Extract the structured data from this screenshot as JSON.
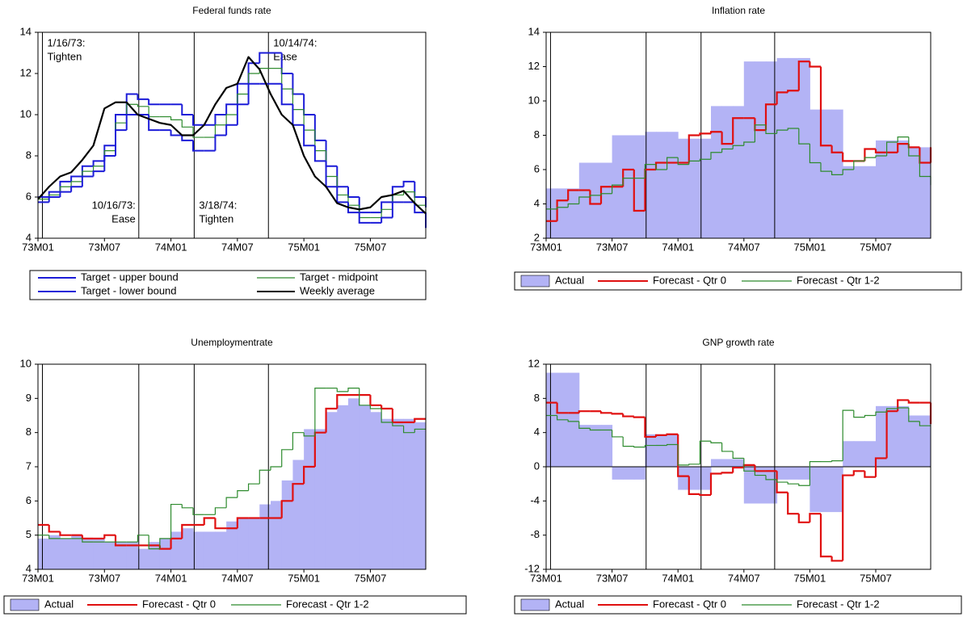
{
  "chart_data": [
    {
      "type": "line",
      "title": "Federal funds rate",
      "categories": [
        "73M01",
        null,
        null,
        null,
        null,
        null,
        "73M07",
        null,
        null,
        null,
        null,
        null,
        "74M01",
        null,
        null,
        null,
        null,
        null,
        "74M07",
        null,
        null,
        null,
        null,
        null,
        "75M01",
        null,
        null,
        null,
        null,
        null,
        "75M07",
        null,
        null,
        null,
        null,
        null
      ],
      "ylim": [
        4,
        14
      ],
      "yticks": [
        4,
        6,
        8,
        10,
        12,
        14
      ],
      "legend": "two-column",
      "events": [
        {
          "at": 0.4,
          "label": [
            "1/16/73:",
            "Tighten"
          ]
        },
        {
          "at": 9.1,
          "label": [
            "10/16/73:",
            "Ease"
          ]
        },
        {
          "at": 14.1,
          "label": [
            "3/18/74:",
            "Tighten"
          ]
        },
        {
          "at": 20.8,
          "label": [
            "10/14/74:",
            "Ease"
          ]
        }
      ],
      "series": [
        {
          "name": "Target - upper bound",
          "color": "#1c1cd8",
          "style": "step",
          "values": [
            6,
            6.25,
            6.75,
            7,
            7.5,
            7.75,
            8.5,
            10,
            11,
            10.75,
            10.5,
            10.5,
            10.5,
            10,
            9.5,
            9.5,
            10,
            10.5,
            11.5,
            12.5,
            13,
            13,
            12,
            11,
            10,
            8.75,
            7.5,
            6.5,
            6,
            5.25,
            5.25,
            5.75,
            6.5,
            6.75,
            6,
            5.5
          ]
        },
        {
          "name": "Target - midpoint",
          "color": "#2e8b2e",
          "style": "step",
          "values": [
            5.9,
            6.1,
            6.5,
            6.75,
            7.25,
            7.5,
            8.25,
            9.6,
            10.5,
            10.4,
            9.9,
            9.9,
            9.75,
            9.4,
            8.9,
            8.9,
            9.5,
            10,
            11,
            12,
            12.25,
            12.25,
            11.25,
            10.25,
            9.25,
            8.25,
            7,
            6.1,
            5.6,
            5,
            5,
            5.4,
            6.1,
            6.25,
            5.6,
            5
          ]
        },
        {
          "name": "Target - lower bound",
          "color": "#1c1cd8",
          "style": "step",
          "values": [
            5.75,
            6,
            6.25,
            6.5,
            7,
            7.25,
            8,
            9.25,
            10,
            10,
            9.25,
            9.25,
            9,
            8.75,
            8.25,
            8.25,
            9,
            9.5,
            10.5,
            11.5,
            11.5,
            11.5,
            10.5,
            9.5,
            8.5,
            7.75,
            6.5,
            5.75,
            5.25,
            4.75,
            4.75,
            5,
            5.75,
            5.75,
            5.25,
            4.5
          ]
        },
        {
          "name": "Weekly average",
          "color": "#000000",
          "style": "line",
          "values": [
            5.9,
            6.5,
            7,
            7.2,
            7.8,
            8.5,
            10.3,
            10.6,
            10.6,
            10,
            9.8,
            9.6,
            9.5,
            9,
            9,
            9.5,
            10.5,
            11.3,
            11.5,
            12.8,
            12.2,
            11,
            10,
            9.5,
            8,
            7,
            6.5,
            5.7,
            5.5,
            5.4,
            5.5,
            6,
            6.1,
            6.3,
            5.7,
            5.2
          ]
        }
      ]
    },
    {
      "type": "line",
      "title": "Inflation rate",
      "categories": [
        "73M01",
        null,
        null,
        null,
        null,
        null,
        "73M07",
        null,
        null,
        null,
        null,
        null,
        "74M01",
        null,
        null,
        null,
        null,
        null,
        "74M07",
        null,
        null,
        null,
        null,
        null,
        "75M01",
        null,
        null,
        null,
        null,
        null,
        "75M07",
        null,
        null,
        null,
        null,
        null
      ],
      "ylim": [
        2,
        14
      ],
      "yticks": [
        2,
        4,
        6,
        8,
        10,
        12,
        14
      ],
      "legend": "row",
      "events": [
        {
          "at": 0.4
        },
        {
          "at": 9.1
        },
        {
          "at": 14.1
        },
        {
          "at": 20.8
        }
      ],
      "series": [
        {
          "name": "Actual",
          "color": "#b3b3f5",
          "style": "area",
          "values": [
            4.9,
            4.9,
            4.9,
            6.4,
            6.4,
            6.4,
            8,
            8,
            8,
            8.2,
            8.2,
            8.2,
            7.8,
            7.8,
            7.8,
            9.7,
            9.7,
            9.7,
            12.3,
            12.3,
            12.3,
            12.5,
            12.5,
            12.5,
            9.5,
            9.5,
            9.5,
            6.2,
            6.2,
            6.2,
            7.7,
            7.7,
            7.7,
            7.3,
            7.3,
            7.3
          ]
        },
        {
          "name": "Forecast - Qtr 0",
          "color": "#e01010",
          "style": "step",
          "values": [
            3,
            4.2,
            4.8,
            4.8,
            4,
            5,
            5,
            6,
            3.6,
            6,
            6.4,
            6.4,
            6.4,
            8,
            8.1,
            8.2,
            7.5,
            9,
            9,
            8.3,
            9.8,
            10.5,
            10.6,
            12.3,
            12,
            7.4,
            7,
            6.5,
            6.5,
            7.2,
            7,
            7,
            7.5,
            7.3,
            6.4,
            7.3
          ]
        },
        {
          "name": "Forecast - Qtr 1-2",
          "color": "#2e8b2e",
          "style": "step",
          "values": [
            3.7,
            3.8,
            4,
            4.4,
            4.5,
            4.6,
            5.1,
            5.5,
            5.5,
            6.3,
            6,
            6.7,
            6.3,
            6.5,
            6.6,
            7,
            7.2,
            7.4,
            7.6,
            8.6,
            8.1,
            8.3,
            8.4,
            7.5,
            6.4,
            5.9,
            5.7,
            6,
            6.5,
            6.7,
            6.8,
            7.6,
            7.9,
            6.8,
            5.6,
            5.1
          ]
        }
      ]
    },
    {
      "type": "line",
      "title": "Unemploymentrate",
      "categories": [
        "73M01",
        null,
        null,
        null,
        null,
        null,
        "73M07",
        null,
        null,
        null,
        null,
        null,
        "74M01",
        null,
        null,
        null,
        null,
        null,
        "74M07",
        null,
        null,
        null,
        null,
        null,
        "75M01",
        null,
        null,
        null,
        null,
        null,
        "75M07",
        null,
        null,
        null,
        null,
        null
      ],
      "ylim": [
        4,
        10
      ],
      "yticks": [
        4,
        5,
        6,
        7,
        8,
        9,
        10
      ],
      "legend": "row",
      "events": [
        {
          "at": 0.4
        },
        {
          "at": 9.1
        },
        {
          "at": 14.1
        },
        {
          "at": 20.8
        }
      ],
      "series": [
        {
          "name": "Actual",
          "color": "#b3b3f5",
          "style": "area",
          "values": [
            4.9,
            5.0,
            4.9,
            5.0,
            4.9,
            4.9,
            4.8,
            4.8,
            4.8,
            4.6,
            4.8,
            4.9,
            5.1,
            5.2,
            5.1,
            5.1,
            5.1,
            5.4,
            5.5,
            5.5,
            5.9,
            6.0,
            6.6,
            7.2,
            8.1,
            8.1,
            8.6,
            8.8,
            9.0,
            8.8,
            8.6,
            8.4,
            8.4,
            8.4,
            8.3,
            8.2
          ]
        },
        {
          "name": "Forecast - Qtr 0",
          "color": "#e01010",
          "style": "step",
          "values": [
            5.3,
            5.1,
            5.0,
            5.0,
            4.9,
            4.9,
            5.0,
            4.7,
            4.7,
            4.7,
            4.7,
            4.6,
            4.9,
            5.3,
            5.3,
            5.5,
            5.2,
            5.2,
            5.5,
            5.5,
            5.5,
            5.5,
            6.0,
            6.5,
            7.0,
            8.0,
            8.7,
            9.1,
            9.1,
            9.1,
            8.8,
            8.7,
            8.3,
            8.3,
            8.4,
            8.4
          ]
        },
        {
          "name": "Forecast - Qtr 1-2",
          "color": "#2e8b2e",
          "style": "step",
          "values": [
            5.0,
            4.9,
            4.9,
            4.9,
            4.8,
            4.8,
            4.8,
            4.8,
            4.8,
            5.0,
            4.6,
            4.9,
            5.9,
            5.8,
            5.6,
            5.6,
            5.8,
            6.1,
            6.3,
            6.5,
            6.9,
            7.0,
            7.5,
            8.0,
            7.9,
            9.3,
            9.3,
            9.2,
            9.3,
            8.8,
            8.7,
            8.3,
            8.2,
            8.0,
            8.1,
            8.1
          ]
        }
      ]
    },
    {
      "type": "line",
      "title": "GNP growth rate",
      "categories": [
        "73M01",
        null,
        null,
        null,
        null,
        null,
        "73M07",
        null,
        null,
        null,
        null,
        null,
        "74M01",
        null,
        null,
        null,
        null,
        null,
        "74M07",
        null,
        null,
        null,
        null,
        null,
        "75M01",
        null,
        null,
        null,
        null,
        null,
        "75M07",
        null,
        null,
        null,
        null,
        null
      ],
      "ylim": [
        -12,
        12
      ],
      "yticks": [
        -12,
        -8,
        -4,
        0,
        4,
        8,
        12
      ],
      "legend": "row",
      "events": [
        {
          "at": 0.4
        },
        {
          "at": 9.1
        },
        {
          "at": 14.1
        },
        {
          "at": 20.8
        }
      ],
      "series": [
        {
          "name": "Actual",
          "color": "#b3b3f5",
          "style": "area",
          "values": [
            11,
            11,
            11,
            4.9,
            4.9,
            4.9,
            -1.5,
            -1.5,
            -1.5,
            3.8,
            3.8,
            3.8,
            -2.7,
            -2.7,
            -2.7,
            0.9,
            0.9,
            0.9,
            -4.3,
            -4.3,
            -4.3,
            -1.5,
            -1.5,
            -1.5,
            -5.3,
            -5.3,
            -5.3,
            3,
            3,
            3,
            7.1,
            7.1,
            7.1,
            6,
            6,
            6
          ]
        },
        {
          "name": "Forecast - Qtr 0",
          "color": "#e01010",
          "style": "step",
          "values": [
            7.5,
            6.3,
            6.3,
            6.5,
            6.5,
            6.3,
            6.2,
            5.9,
            5.8,
            3.5,
            3.7,
            3.8,
            -1.1,
            -3.2,
            -3.3,
            -0.8,
            -0.7,
            -0.1,
            0.2,
            -0.5,
            -0.5,
            -3,
            -5.5,
            -6.5,
            -5.5,
            -10.5,
            -11,
            -1,
            -0.5,
            -1.2,
            1,
            6.5,
            7.8,
            7.5,
            7.5,
            5
          ]
        },
        {
          "name": "Forecast - Qtr 1-2",
          "color": "#2e8b2e",
          "style": "step",
          "values": [
            6,
            5.5,
            5.3,
            4.5,
            4.3,
            4.3,
            3.5,
            2.4,
            2.3,
            2.5,
            2.5,
            2.6,
            0.2,
            0.3,
            3,
            2.8,
            1.8,
            1,
            -0.5,
            -1,
            -1.5,
            -1.8,
            -2,
            -2.2,
            0.6,
            0.6,
            0.7,
            6.6,
            5.8,
            6,
            6.4,
            6.8,
            6.9,
            5.3,
            4.8,
            4.8
          ]
        }
      ]
    }
  ]
}
